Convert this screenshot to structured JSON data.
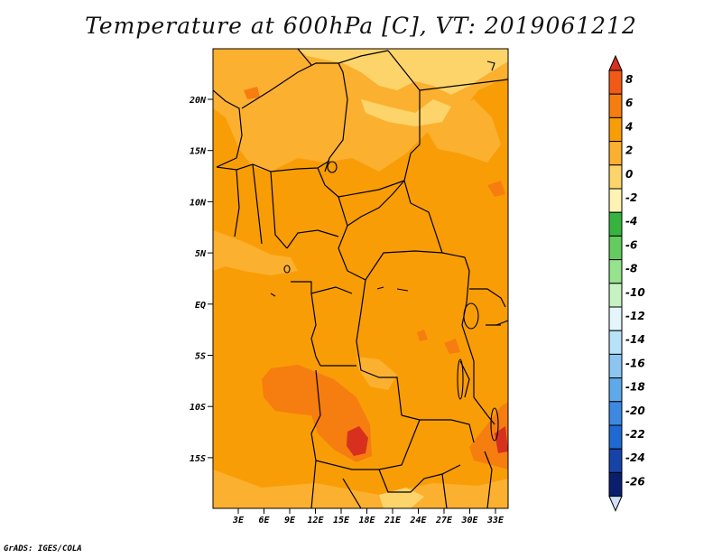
{
  "title": "Temperature at 600hPa [C], VT: 2019061212",
  "footer": "GrADS: IGES/COLA",
  "map": {
    "lon_labels": [
      "3E",
      "6E",
      "9E",
      "12E",
      "15E",
      "18E",
      "21E",
      "24E",
      "27E",
      "30E",
      "33E"
    ],
    "lat_labels": [
      "20N",
      "15N",
      "10N",
      "5N",
      "EQ",
      "5S",
      "10S",
      "15S"
    ]
  },
  "colorbar": {
    "labels": [
      "8",
      "6",
      "4",
      "2",
      "0",
      "-2",
      "-4",
      "-6",
      "-8",
      "-10",
      "-12",
      "-14",
      "-16",
      "-18",
      "-20",
      "-22",
      "-24",
      "-26"
    ],
    "colors": [
      "#d7301f",
      "#f15a16",
      "#f67d0f",
      "#f99d07",
      "#fcb030",
      "#fdd46a",
      "#fef3b4",
      "#37b440",
      "#64cc5e",
      "#95e38d",
      "#c7f2c2",
      "#e4f6fb",
      "#b7e2f7",
      "#8cc6f0",
      "#5ea9ea",
      "#3d89e1",
      "#1e69d2",
      "#1643a8",
      "#0a1e6e",
      "#cfe0fb"
    ]
  }
}
